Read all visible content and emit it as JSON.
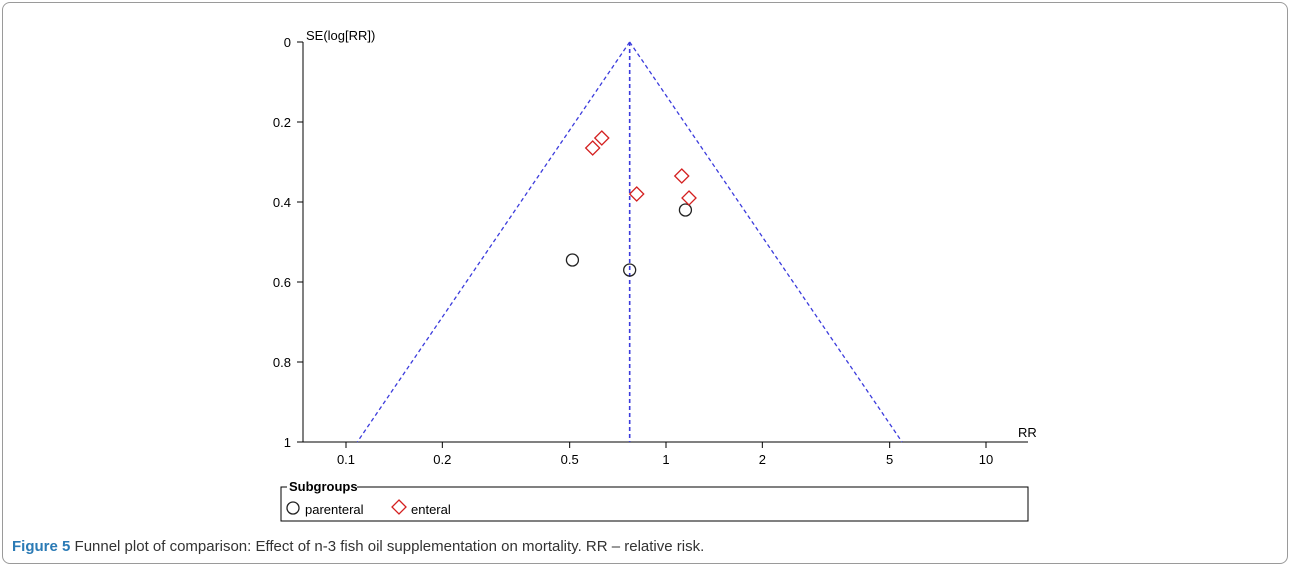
{
  "chart_data": {
    "type": "scatter",
    "subtype": "funnel-plot",
    "ylabel": "SE(log[RR])",
    "xlabel": "RR",
    "x_scale": "log",
    "xlim": [
      0.08,
      13
    ],
    "ylim": [
      0,
      1
    ],
    "y_inverted": true,
    "x_ticks": [
      0.1,
      0.2,
      0.5,
      1,
      2,
      5,
      10
    ],
    "x_tick_labels": [
      "0.1",
      "0.2",
      "0.5",
      "1",
      "2",
      "5",
      "10"
    ],
    "y_ticks": [
      0,
      0.2,
      0.4,
      0.6,
      0.8,
      1
    ],
    "y_tick_labels": [
      "0",
      "0.2",
      "0.4",
      "0.6",
      "0.8",
      "1"
    ],
    "pooled_rr": 0.77,
    "funnel_line_color": "#3b3bdc",
    "series": [
      {
        "name": "parenteral",
        "marker": "circle",
        "color": "#222222",
        "points": [
          {
            "x": 0.51,
            "y": 0.545
          },
          {
            "x": 0.77,
            "y": 0.57
          },
          {
            "x": 1.15,
            "y": 0.42
          }
        ]
      },
      {
        "name": "enteral",
        "marker": "diamond",
        "color": "#d42020",
        "points": [
          {
            "x": 0.63,
            "y": 0.24
          },
          {
            "x": 0.59,
            "y": 0.265
          },
          {
            "x": 1.12,
            "y": 0.335
          },
          {
            "x": 0.81,
            "y": 0.38
          },
          {
            "x": 1.18,
            "y": 0.39
          }
        ]
      }
    ],
    "legend": {
      "title": "Subgroups",
      "placement": "bottom",
      "items": [
        "parenteral",
        "enteral"
      ]
    }
  },
  "caption": {
    "label": "Figure 5",
    "text": " Funnel plot of comparison: Effect of n-3 fish oil supplementation on mortality. RR – relative risk."
  }
}
